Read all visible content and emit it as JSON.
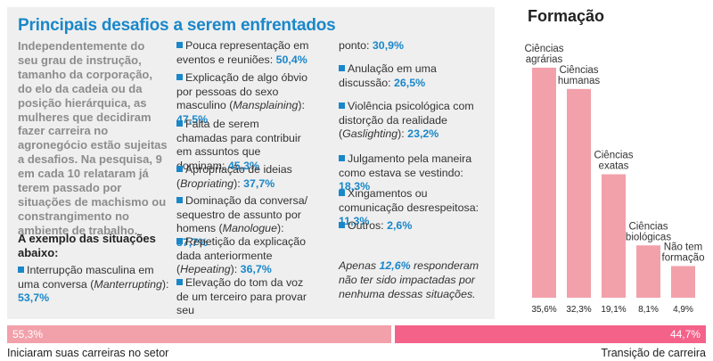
{
  "left_panel": {
    "title": "Principais desafios a serem enfrentados",
    "intro": "Independentemente do seu grau de instrução, tamanho da corporação, do elo da cadeia ou da posição hierárquica, as mulheres que decidiram fazer carreira no agronegócio estão sujeitas a desafios. Na pesquisa, 9 em cada 10 relataram já terem passado por situações de machismo ou constrangimento no ambiente de trabalho.",
    "examples_heading": "A exemplo das situações abaixo:",
    "items": [
      {
        "label": "Interrupção masculina em uma conversa (",
        "term": "Manterrupting",
        "close": "):",
        "value": "53,7%"
      },
      {
        "label": "Pouca representação em eventos e reuniões:",
        "value": "50,4%"
      },
      {
        "label": "Explicação de algo óbvio por pessoas do sexo masculino (",
        "term": "Mansplaining",
        "close": "):",
        "value": "47,5%"
      },
      {
        "label": "Falta de serem chamadas para contribuir em assuntos que dominam:",
        "value": "45,3%"
      },
      {
        "label": "Apropriação de ideias (",
        "term": "Bropriating",
        "close": "):",
        "value": "37,7%"
      },
      {
        "label": "Dominação da conversa/ sequestro de assunto por homens (",
        "term": "Manologue",
        "close": "):",
        "value": "37,7%"
      },
      {
        "label": "Repetição da explicação dada anteriormente (",
        "term": "Hepeating",
        "close": "):",
        "value": "36,7%"
      },
      {
        "label": "Elevação do tom da voz de um terceiro para provar seu",
        "cont": "ponto:",
        "value": "30,9%"
      },
      {
        "label": "Anulação em uma discussão:",
        "value": "26,5%"
      },
      {
        "label": "Violência psicológica com distorção da realidade (",
        "term": "Gaslighting",
        "close": "):",
        "value": "23,2%"
      },
      {
        "label": "Julgamento pela maneira como estava se vestindo:",
        "value": "18,3%"
      },
      {
        "label": "Xingamentos ou comunicação desrespeitosa:",
        "value": "11,3%"
      },
      {
        "label": "Outros:",
        "value": "2,6%"
      }
    ],
    "footnote": {
      "before": "Apenas ",
      "value": "12,6%",
      "after": " responderam não ter sido impactadas por nenhuma dessas situações."
    }
  },
  "chart_data": [
    {
      "type": "bar",
      "title": "Formação",
      "categories": [
        "Ciências agrárias",
        "Ciências humanas",
        "Ciências exatas",
        "Ciências biológicas",
        "Não tem formação"
      ],
      "category_lines": [
        [
          "Ciências",
          "agrárias"
        ],
        [
          "Ciências",
          "humanas"
        ],
        [
          "Ciências",
          "exatas"
        ],
        [
          "Ciências",
          "biológicas"
        ],
        [
          "Não tem",
          "formação"
        ]
      ],
      "values": [
        35.6,
        32.3,
        19.1,
        8.1,
        4.9
      ],
      "value_labels": [
        "35,6%",
        "32,3%",
        "19,1%",
        "8,1%",
        "4,9%"
      ],
      "ylim": [
        0,
        40
      ],
      "color": "#f2a0aa"
    },
    {
      "type": "bar",
      "orientation": "horizontal-stacked",
      "categories": [
        "Iniciaram suas carreiras no setor",
        "Transição de carreira"
      ],
      "values": [
        55.3,
        44.7
      ],
      "value_labels": [
        "55,3%",
        "44,7%"
      ],
      "colors": [
        "#f2a0aa",
        "#f4628a"
      ]
    }
  ]
}
